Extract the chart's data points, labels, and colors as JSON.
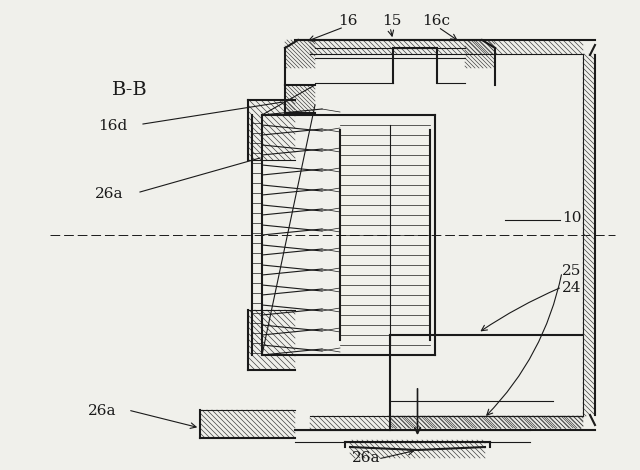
{
  "bg_color": "#f0f0eb",
  "line_color": "#1a1a1a",
  "hatch_color": "#444444",
  "labels": {
    "BB": "B-B",
    "16": "16",
    "15": "15",
    "16c": "16c",
    "16d": "16d",
    "26a_top": "26a",
    "10": "10",
    "24": "24",
    "25": "25",
    "26a_bot_left": "26a",
    "26a_bot_mid": "26a"
  }
}
